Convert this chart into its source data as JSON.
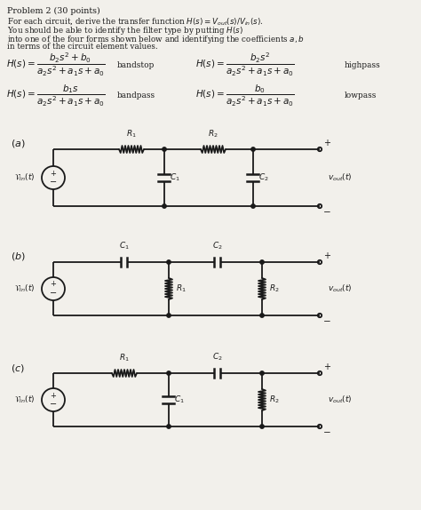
{
  "bg_color": "#f2f0eb",
  "text_color": "#1a1a1a",
  "fig_width": 4.74,
  "fig_height": 5.74,
  "dpi": 100,
  "lw": 1.3,
  "header_lines": [
    "Problem 2 (30 points)",
    "For each circuit, derive the transfer function $H(s) = V_{out}(s)/V_{in}(s)$.",
    "You should be able to identify the filter type by putting $H(s)$",
    "into one of the four forms shown below and identifying the coefficients $a, b$",
    "in terms of the circuit element values."
  ],
  "formula_row1_left": "$H(s) = \\dfrac{b_2 s^2 + b_0}{a_2 s^2 + a_1 s + a_0}$",
  "formula_row1_left_label": "bandstop",
  "formula_row1_right": "$H(s) = \\dfrac{b_2 s^2}{a_2 s^2 + a_1 s + a_0}$",
  "formula_row1_right_label": "highpass",
  "formula_row2_left": "$H(s) = \\dfrac{b_1 s}{a_2 s^2 + a_1 s + a_0}$",
  "formula_row2_left_label": "bandpass",
  "formula_row2_right": "$H(s) = \\dfrac{b_0}{a_2 s^2 + a_1 s + a_0}$",
  "formula_row2_right_label": "lowpass"
}
